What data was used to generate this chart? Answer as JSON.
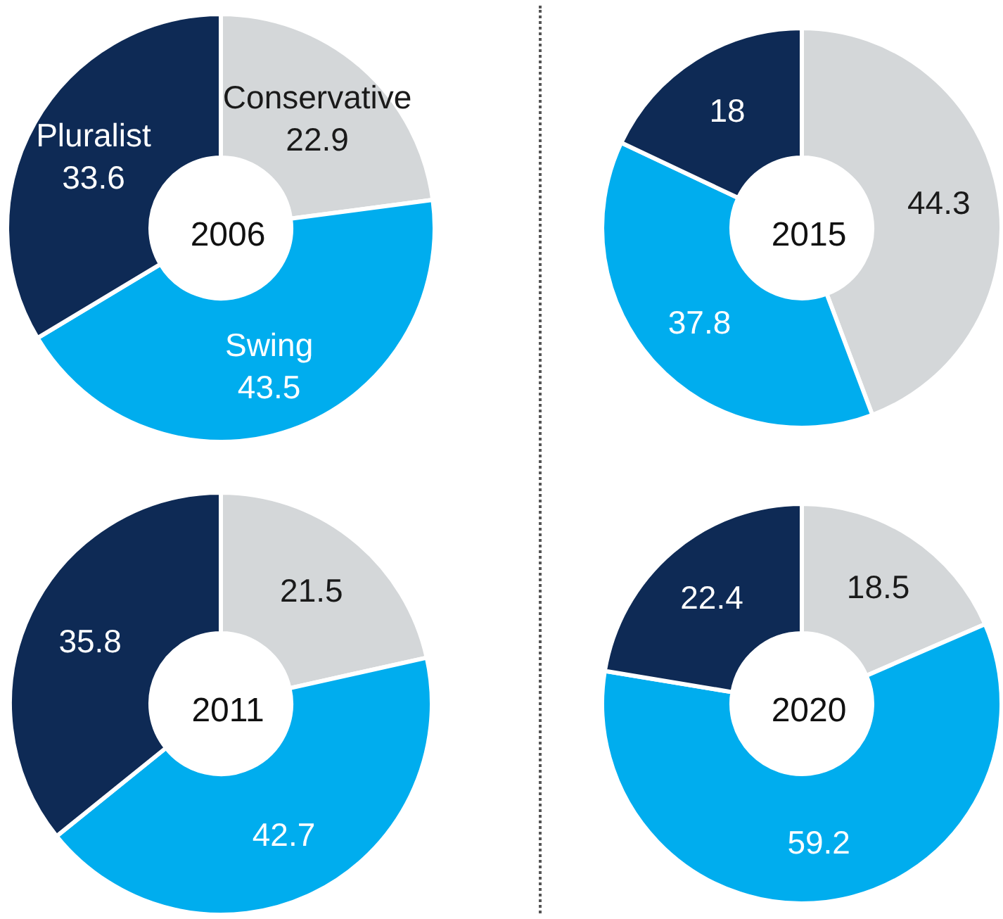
{
  "chart_data": [
    {
      "type": "donut",
      "title": "2006",
      "categories": [
        "Conservative",
        "Swing",
        "Pluralist"
      ],
      "values": [
        22.9,
        43.5,
        33.6
      ],
      "colors": [
        "#d4d7d9",
        "#00adee",
        "#0e2a55"
      ],
      "data_labels": true
    },
    {
      "type": "donut",
      "title": "2015",
      "categories": [
        null,
        null,
        null
      ],
      "values": [
        44.3,
        37.8,
        18
      ],
      "colors": [
        "#d4d7d9",
        "#00adee",
        "#0e2a55"
      ],
      "data_labels": true
    },
    {
      "type": "donut",
      "title": "2011",
      "categories": [
        null,
        null,
        null
      ],
      "values": [
        21.5,
        42.7,
        35.8
      ],
      "colors": [
        "#d4d7d9",
        "#00adee",
        "#0e2a55"
      ],
      "data_labels": true
    },
    {
      "type": "donut",
      "title": "2020",
      "categories": [
        null,
        null,
        null
      ],
      "values": [
        18.5,
        59.2,
        22.4
      ],
      "colors": [
        "#d4d7d9",
        "#00adee",
        "#0e2a55"
      ],
      "data_labels": true
    }
  ]
}
